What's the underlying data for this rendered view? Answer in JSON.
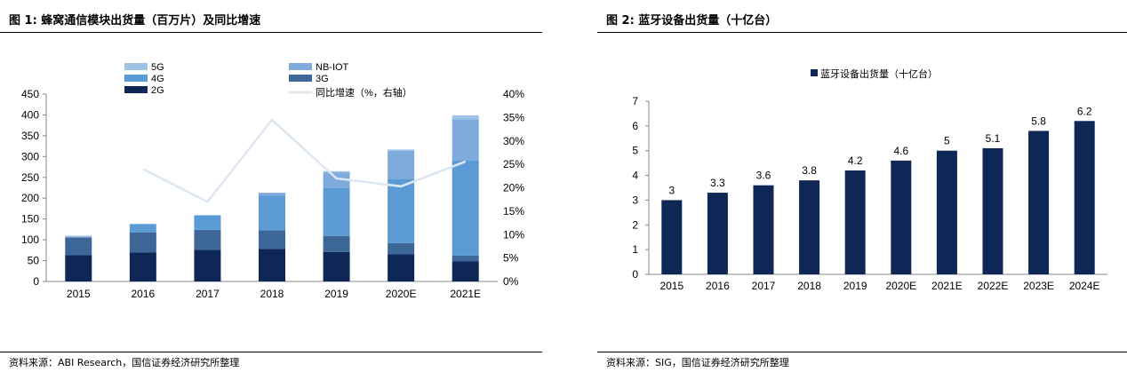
{
  "colors": {
    "g5": "#9DC3E6",
    "nbiot": "#7FAADC",
    "g4": "#5B9BD5",
    "g3": "#3C6796",
    "g2": "#0E2756",
    "growth": "#DDE7F2",
    "bt": "#0E2756"
  },
  "panel1": {
    "title": "图 1: 蜂窝通信模块出货量（百万片）及同比增速",
    "source": "资料来源：ABI Research，国信证券经济研究所整理"
  },
  "panel2": {
    "title": "图 2: 蓝牙设备出货量（十亿台）",
    "source": "资料来源：SIG，国信证券经济研究所整理"
  },
  "chart_data": [
    {
      "type": "bar",
      "stacked": true,
      "categories": [
        "2015",
        "2016",
        "2017",
        "2018",
        "2019",
        "2020E",
        "2021E"
      ],
      "series": [
        {
          "name": "2G",
          "values": [
            63,
            70,
            76,
            78,
            71,
            65,
            48
          ]
        },
        {
          "name": "3G",
          "values": [
            43,
            48,
            48,
            45,
            38,
            27,
            14
          ]
        },
        {
          "name": "4G",
          "values": [
            0,
            20,
            35,
            83,
            115,
            155,
            228
          ]
        },
        {
          "name": "NB-IOT",
          "values": [
            0,
            0,
            0,
            7,
            38,
            67,
            100
          ]
        },
        {
          "name": "5G",
          "values": [
            4,
            0,
            0,
            0,
            3,
            3,
            9
          ]
        }
      ],
      "line": {
        "name": "同比增速（%，右轴）",
        "x": [
          "2016",
          "2017",
          "2018",
          "2019",
          "2020E",
          "2021E"
        ],
        "values": [
          24,
          17,
          34.5,
          22,
          20.3,
          25.6
        ]
      },
      "ylim": [
        0,
        450
      ],
      "yticks": [
        "0",
        "50",
        "100",
        "150",
        "200",
        "250",
        "300",
        "350",
        "400",
        "450"
      ],
      "y2lim": [
        0,
        40
      ],
      "y2ticks": [
        "0%",
        "5%",
        "10%",
        "15%",
        "20%",
        "25%",
        "30%",
        "35%",
        "40%"
      ],
      "legend": {
        "col1": [
          "5G",
          "4G",
          "2G"
        ],
        "col2": [
          "NB-IOT",
          "3G",
          "同比增速（%，右轴）"
        ]
      }
    },
    {
      "type": "bar",
      "categories": [
        "2015",
        "2016",
        "2017",
        "2018",
        "2019",
        "2020E",
        "2021E",
        "2022E",
        "2023E",
        "2024E"
      ],
      "series": [
        {
          "name": "蓝牙设备出货量（十亿台）",
          "values": [
            3,
            3.3,
            3.6,
            3.8,
            4.2,
            4.6,
            5,
            5.1,
            5.8,
            6.2
          ]
        }
      ],
      "data_labels": [
        "3",
        "3.3",
        "3.6",
        "3.8",
        "4.2",
        "4.6",
        "5",
        "5.1",
        "5.8",
        "6.2"
      ],
      "ylim": [
        0,
        7
      ],
      "yticks": [
        "0",
        "1",
        "2",
        "3",
        "4",
        "5",
        "6",
        "7"
      ],
      "legend_position": "top"
    }
  ]
}
